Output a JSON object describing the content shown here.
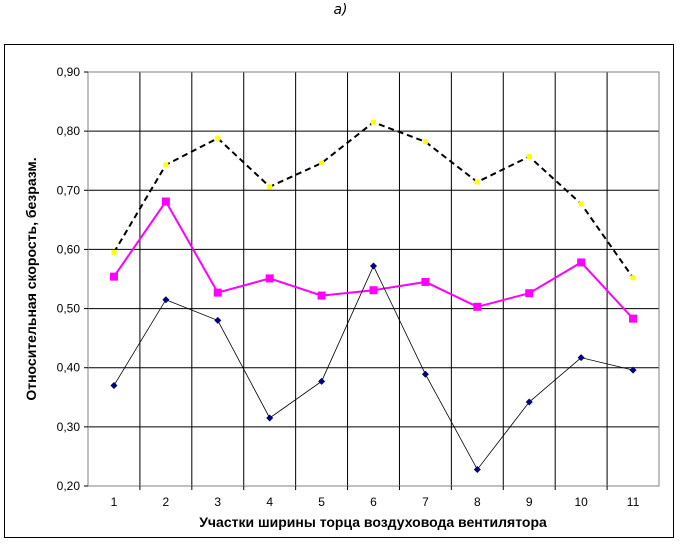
{
  "figure_label": "а)",
  "chart_data": {
    "type": "line",
    "title": "",
    "xlabel": "Участки ширины торца воздуховода вентилятора",
    "ylabel": "Относительная скорость, безразм.",
    "categories": [
      "1",
      "2",
      "3",
      "4",
      "5",
      "6",
      "7",
      "8",
      "9",
      "10",
      "11"
    ],
    "ylim": [
      0.2,
      0.9
    ],
    "yticks": [
      "0,20",
      "0,30",
      "0,40",
      "0,50",
      "0,60",
      "0,70",
      "0,80",
      "0,90"
    ],
    "grid": true,
    "legend": "none",
    "series": [
      {
        "values": [
          0.595,
          0.743,
          0.788,
          0.706,
          0.746,
          0.815,
          0.782,
          0.714,
          0.757,
          0.677,
          0.552
        ],
        "color": "#000000",
        "marker_color": "#ffff00",
        "line_style": "dashed",
        "marker": "small-square"
      },
      {
        "values": [
          0.554,
          0.681,
          0.527,
          0.551,
          0.522,
          0.531,
          0.545,
          0.503,
          0.526,
          0.578,
          0.483
        ],
        "color": "#ff00ff",
        "marker_color": "#ff00ff",
        "line_style": "solid",
        "marker": "square"
      },
      {
        "values": [
          0.37,
          0.515,
          0.48,
          0.315,
          0.377,
          0.572,
          0.389,
          0.228,
          0.342,
          0.417,
          0.396
        ],
        "color": "#000000",
        "marker_color": "#000080",
        "line_style": "thin",
        "marker": "diamond"
      }
    ]
  }
}
